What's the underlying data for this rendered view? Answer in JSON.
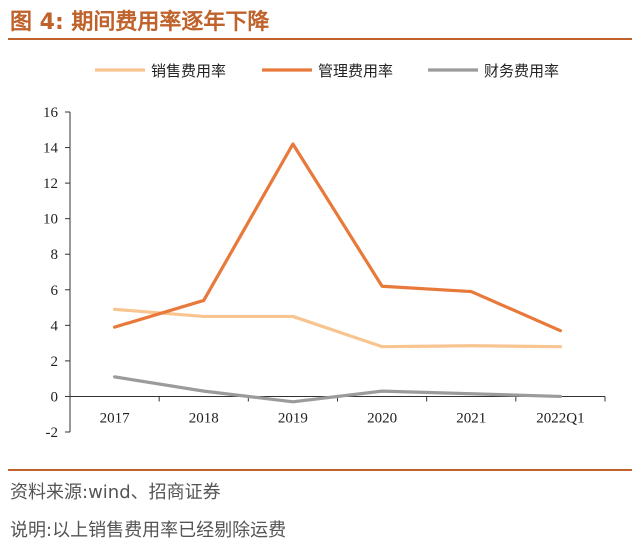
{
  "figure": {
    "title": "图 4:  期间费用率逐年下降",
    "source": "资料来源:wind、招商证券",
    "note": "说明:以上销售费用率已经剔除运费"
  },
  "colors": {
    "accent": "#c0622b",
    "series_selling": "#f8c48f",
    "series_admin": "#e8793a",
    "series_finance": "#9b9b9b"
  },
  "chart_data": {
    "type": "line",
    "x": [
      "2017",
      "2018",
      "2019",
      "2020",
      "2021",
      "2022Q1"
    ],
    "series": [
      {
        "name": "销售费用率",
        "values": [
          4.9,
          4.5,
          4.5,
          2.8,
          2.85,
          2.8
        ],
        "color": "#f8c48f"
      },
      {
        "name": "管理费用率",
        "values": [
          3.9,
          5.4,
          14.2,
          6.2,
          5.9,
          3.7
        ],
        "color": "#e8793a"
      },
      {
        "name": "财务费用率",
        "values": [
          1.1,
          0.3,
          -0.3,
          0.3,
          0.15,
          0.0
        ],
        "color": "#9b9b9b"
      }
    ],
    "yticks": [
      "16",
      "14",
      "12",
      "10",
      "8",
      "6",
      "4",
      "2",
      "0",
      "-2"
    ],
    "ylim": [
      -2,
      16
    ],
    "legend_position": "top",
    "grid": false
  }
}
